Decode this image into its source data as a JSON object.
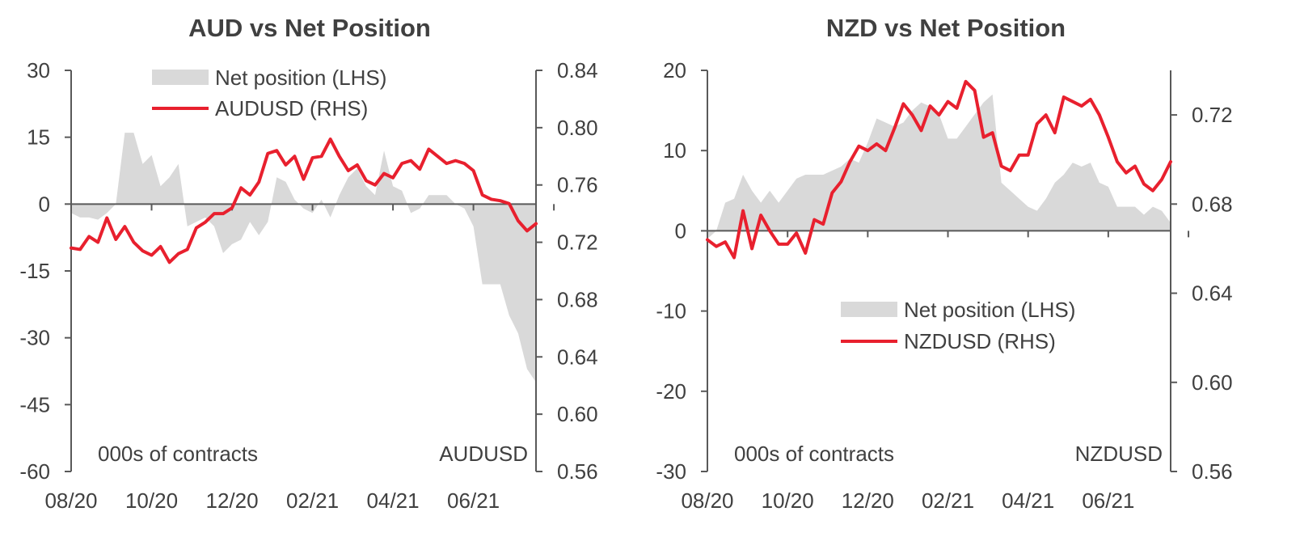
{
  "colors": {
    "net_position_fill": "#d9d9d9",
    "fx_line": "#e8202e",
    "axis": "#595959",
    "text": "#404040"
  },
  "chart_data": [
    {
      "type": "area",
      "title": "AUD vs Net Position",
      "left_axis_note": "000s of contracts",
      "right_axis_note": "AUDUSD",
      "left_ylim": [
        -60,
        30
      ],
      "left_ticks": [
        30,
        15,
        0,
        -15,
        -30,
        -45,
        -60
      ],
      "left_tick_labels": [
        "30",
        "15",
        "0",
        "-15",
        "-30",
        "-45",
        "-60"
      ],
      "right_ylim": [
        0.56,
        0.84
      ],
      "right_ticks": [
        0.84,
        0.8,
        0.76,
        0.72,
        0.68,
        0.64,
        0.6,
        0.56
      ],
      "right_tick_labels": [
        "0.84",
        "0.80",
        "0.76",
        "0.72",
        "0.68",
        "0.64",
        "0.60",
        "0.56"
      ],
      "x_tick_positions": [
        0,
        9,
        18,
        27,
        36,
        45,
        54
      ],
      "x_tick_labels": [
        "08/20",
        "10/20",
        "12/20",
        "02/21",
        "04/21",
        "06/21"
      ],
      "x_label_positions": [
        0,
        9,
        18,
        27,
        36,
        45
      ],
      "legend": [
        {
          "type": "area",
          "label": "Net position (LHS)"
        },
        {
          "type": "line",
          "label": "AUDUSD (RHS)"
        }
      ],
      "legend_position": "top-center",
      "series": [
        {
          "name": "Net position (LHS)",
          "axis": "left",
          "type": "area",
          "values": [
            -2,
            -3,
            -3,
            -3.5,
            -2,
            0,
            16,
            16,
            9,
            11,
            4,
            6,
            9,
            -5,
            -4,
            -3,
            -5,
            -11,
            -9,
            -8,
            -4,
            -7,
            -4,
            6,
            5,
            1,
            -1,
            -2,
            1,
            -3,
            2,
            6,
            8,
            4,
            2,
            12,
            4,
            3,
            -2,
            -1,
            2,
            2,
            2,
            0,
            -1,
            -5,
            -18,
            -18,
            -18,
            -25,
            -29,
            -37,
            -40
          ]
        },
        {
          "name": "AUDUSD (RHS)",
          "axis": "right",
          "type": "line",
          "values": [
            0.716,
            0.715,
            0.724,
            0.72,
            0.737,
            0.722,
            0.731,
            0.72,
            0.714,
            0.711,
            0.717,
            0.706,
            0.712,
            0.715,
            0.73,
            0.734,
            0.74,
            0.74,
            0.744,
            0.758,
            0.753,
            0.762,
            0.782,
            0.784,
            0.774,
            0.78,
            0.764,
            0.779,
            0.78,
            0.792,
            0.78,
            0.77,
            0.774,
            0.763,
            0.76,
            0.768,
            0.765,
            0.775,
            0.777,
            0.771,
            0.785,
            0.78,
            0.775,
            0.777,
            0.775,
            0.77,
            0.753,
            0.75,
            0.749,
            0.747,
            0.735,
            0.728,
            0.733
          ]
        }
      ]
    },
    {
      "type": "area",
      "title": "NZD vs Net Position",
      "left_axis_note": "000s of contracts",
      "right_axis_note": "NZDUSD",
      "left_ylim": [
        -30,
        20
      ],
      "left_ticks": [
        20,
        10,
        0,
        -10,
        -20,
        -30
      ],
      "left_tick_labels": [
        "20",
        "10",
        "0",
        "-10",
        "-20",
        "-30"
      ],
      "right_ylim": [
        0.56,
        0.74
      ],
      "right_ticks": [
        0.72,
        0.68,
        0.64,
        0.6,
        0.56
      ],
      "right_tick_labels": [
        "0.72",
        "0.68",
        "0.64",
        "0.60",
        "0.56"
      ],
      "x_tick_positions": [
        0,
        9,
        18,
        27,
        36,
        45,
        54
      ],
      "x_tick_labels": [
        "08/20",
        "10/20",
        "12/20",
        "02/21",
        "04/21",
        "06/21"
      ],
      "x_label_positions": [
        0,
        9,
        18,
        27,
        36,
        45
      ],
      "legend": [
        {
          "type": "area",
          "label": "Net position (LHS)"
        },
        {
          "type": "line",
          "label": "NZDUSD (RHS)"
        }
      ],
      "legend_position": "bottom-center",
      "series": [
        {
          "name": "Net position (LHS)",
          "axis": "left",
          "type": "area",
          "values": [
            -1,
            0,
            3.5,
            4,
            7,
            5,
            3.5,
            5,
            3.5,
            5,
            6.5,
            7,
            7,
            7,
            7.5,
            8,
            9,
            8.5,
            11,
            14,
            13.5,
            13,
            13.5,
            15,
            16,
            15.5,
            14.5,
            11.5,
            11.5,
            13,
            14.5,
            16,
            17,
            6,
            5,
            4,
            3,
            2.5,
            4,
            6,
            7,
            8.5,
            8,
            8.5,
            6,
            5.5,
            3,
            3,
            3,
            2,
            3,
            2.5,
            1
          ]
        },
        {
          "name": "NZDUSD (RHS)",
          "axis": "right",
          "type": "line",
          "values": [
            0.664,
            0.661,
            0.663,
            0.656,
            0.677,
            0.66,
            0.675,
            0.668,
            0.662,
            0.662,
            0.667,
            0.658,
            0.673,
            0.671,
            0.685,
            0.69,
            0.699,
            0.706,
            0.704,
            0.707,
            0.704,
            0.714,
            0.725,
            0.72,
            0.713,
            0.724,
            0.72,
            0.726,
            0.723,
            0.735,
            0.731,
            0.71,
            0.712,
            0.697,
            0.695,
            0.702,
            0.702,
            0.716,
            0.72,
            0.712,
            0.728,
            0.726,
            0.724,
            0.727,
            0.72,
            0.71,
            0.699,
            0.694,
            0.697,
            0.689,
            0.686,
            0.691,
            0.699
          ]
        }
      ]
    }
  ]
}
